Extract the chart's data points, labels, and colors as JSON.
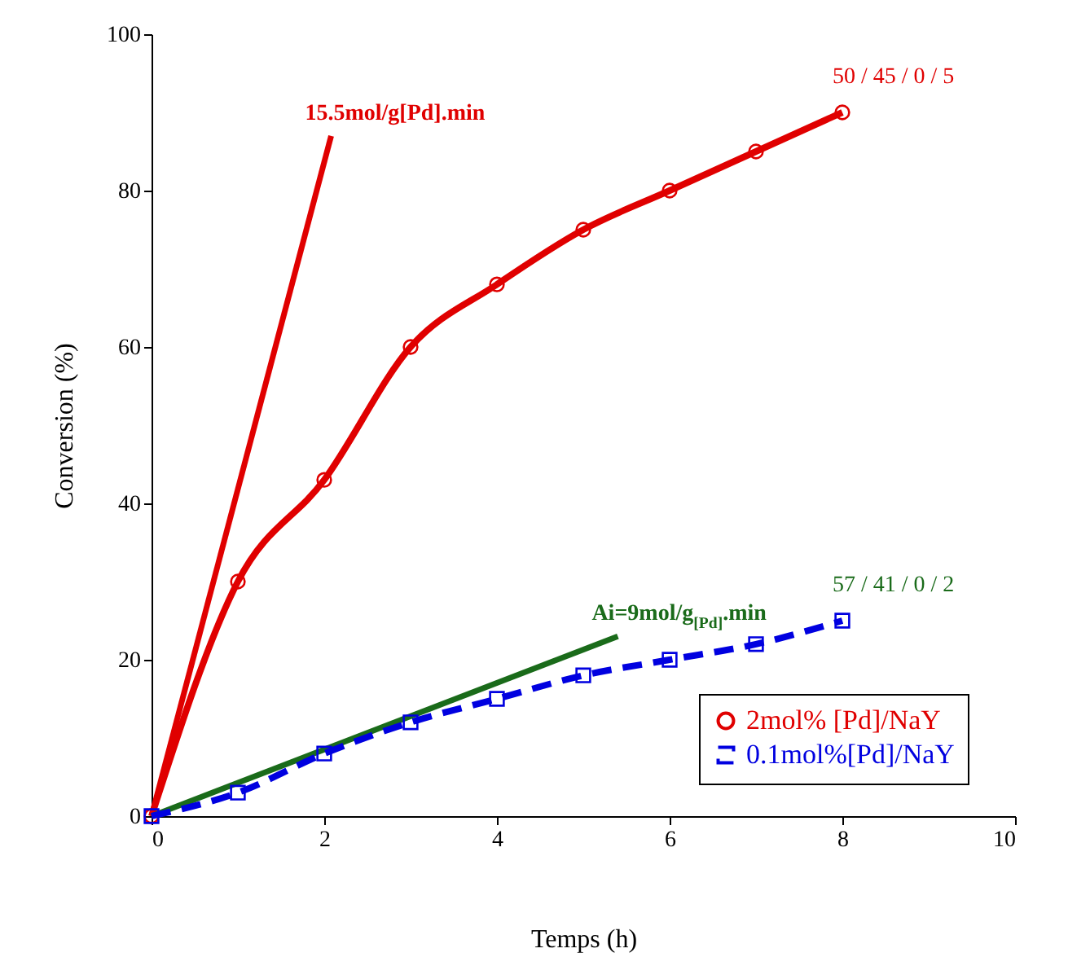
{
  "chart_data": {
    "type": "line",
    "xlabel": "Temps (h)",
    "ylabel": "Conversion (%)",
    "xlim": [
      0,
      10
    ],
    "ylim": [
      0,
      100
    ],
    "xticks": [
      0,
      2,
      4,
      6,
      8,
      10
    ],
    "yticks": [
      0,
      20,
      40,
      60,
      80,
      100
    ],
    "grid": false,
    "legend": "bottom right",
    "series": [
      {
        "name": "2mol% [Pd]/NaY",
        "color": "#e00000",
        "marker": "circle",
        "x": [
          0,
          1,
          2,
          3,
          4,
          5,
          6,
          7,
          8
        ],
        "values": [
          0,
          30,
          43,
          60,
          68,
          75,
          80,
          85,
          90
        ]
      },
      {
        "name": "15.5mol/g[Pd].min",
        "color": "#e00000",
        "x": [
          0,
          2.08
        ],
        "values": [
          0,
          87
        ]
      },
      {
        "name": "Ai=9mol/g$_{[Pd]}$.min",
        "color": "#1a6b1a",
        "x": [
          0,
          5.4
        ],
        "values": [
          0,
          23
        ]
      },
      {
        "name": "0.1mol%[Pd]/NaY",
        "color": "#0000e0",
        "marker": "square",
        "line_style": "dashed",
        "x": [
          0,
          1,
          2,
          3,
          4,
          5,
          6,
          7,
          8
        ],
        "values": [
          0,
          3,
          8,
          12,
          15,
          18,
          20,
          22,
          25
        ]
      }
    ],
    "annotations": [
      "50 / 45 / 0 / 5",
      "57 / 41 / 0 / 2"
    ]
  }
}
